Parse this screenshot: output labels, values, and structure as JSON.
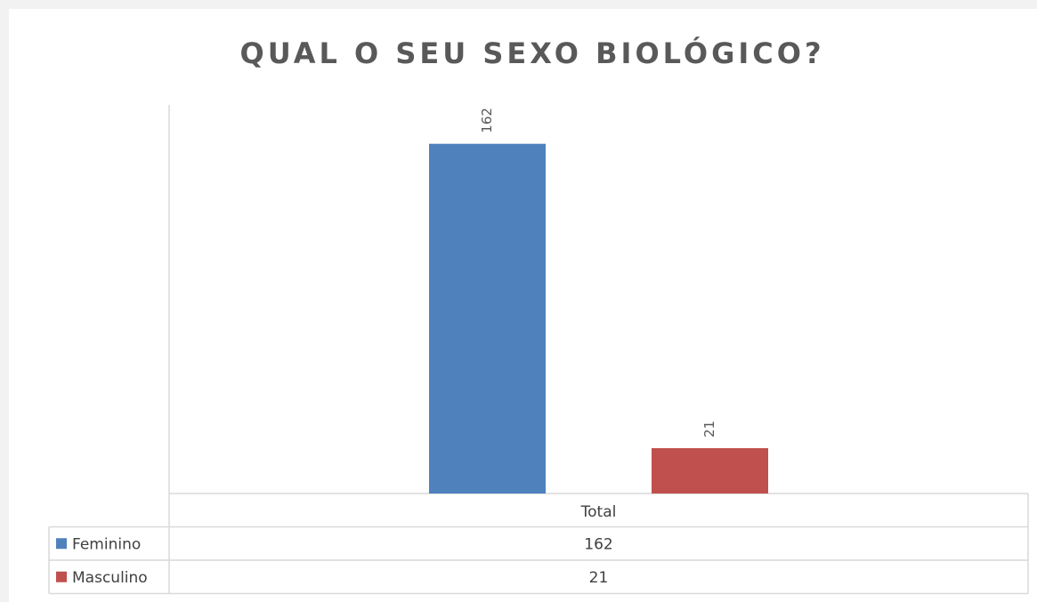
{
  "chart_data": {
    "type": "bar",
    "title": "QUAL O SEU SEXO BIOLÓGICO?",
    "categories": [
      "Total"
    ],
    "series": [
      {
        "name": "Feminino",
        "color": "#4f81bd",
        "values": [
          162
        ]
      },
      {
        "name": "Masculino",
        "color": "#c0504d",
        "values": [
          21
        ]
      }
    ],
    "ylim": [
      0,
      180
    ],
    "grid": false,
    "data_table": true
  }
}
